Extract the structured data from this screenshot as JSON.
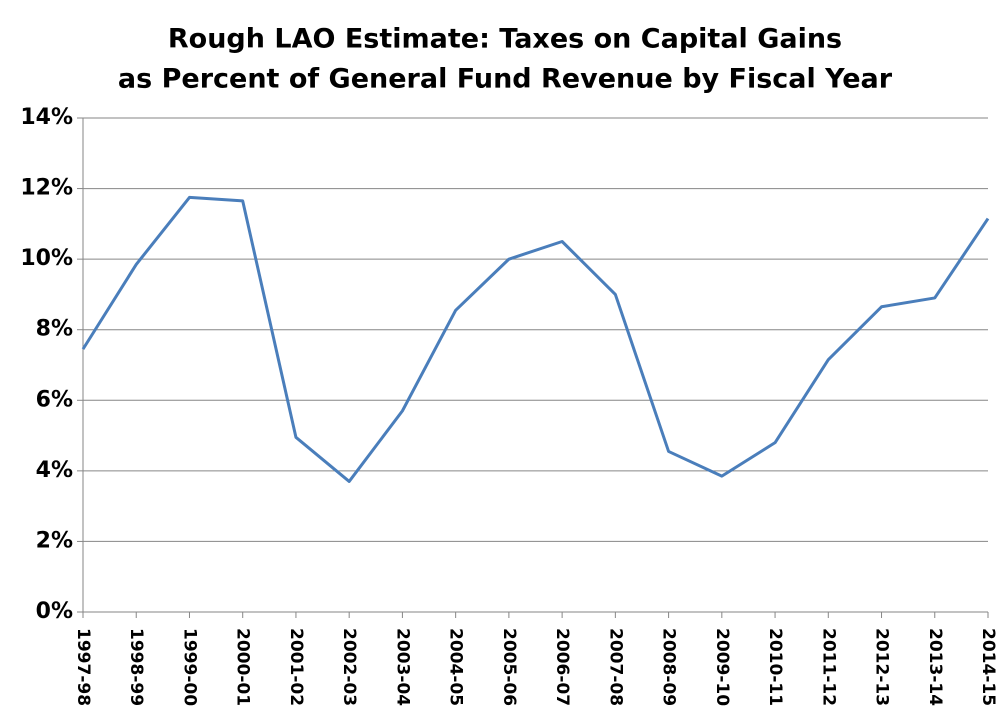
{
  "chart_data": {
    "type": "line",
    "title": [
      "Rough LAO Estimate: Taxes on Capital Gains",
      "as Percent of General Fund Revenue by Fiscal Year"
    ],
    "categories": [
      "1997-98",
      "1998-99",
      "1999-00",
      "2000-01",
      "2001-02",
      "2002-03",
      "2003-04",
      "2004-05",
      "2005-06",
      "2006-07",
      "2007-08",
      "2008-09",
      "2009-10",
      "2010-11",
      "2011-12",
      "2012-13",
      "2013-14",
      "2014-15"
    ],
    "series": [
      {
        "color": "#4a7ebb",
        "values": [
          7.45,
          9.85,
          11.75,
          11.65,
          4.95,
          3.7,
          5.7,
          8.55,
          10.0,
          10.5,
          9.0,
          4.55,
          3.85,
          4.8,
          7.15,
          8.65,
          8.9,
          11.15
        ]
      }
    ],
    "ylim": [
      0,
      14
    ],
    "yticks": [
      {
        "value": 0,
        "label": "0%"
      },
      {
        "value": 2,
        "label": "2%"
      },
      {
        "value": 4,
        "label": "4%"
      },
      {
        "value": 6,
        "label": "6%"
      },
      {
        "value": 8,
        "label": "8%"
      },
      {
        "value": 10,
        "label": "10%"
      },
      {
        "value": 12,
        "label": "12%"
      },
      {
        "value": 14,
        "label": "14%"
      }
    ],
    "grid": true
  }
}
